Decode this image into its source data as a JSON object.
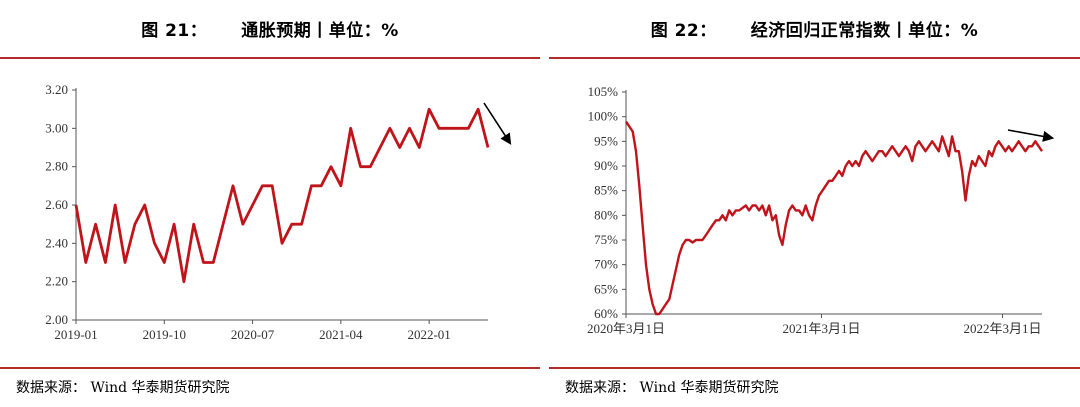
{
  "figures": [
    {
      "id": "fig21",
      "number": "图 21：",
      "title": "通胀预期丨单位：%",
      "source": "数据来源：  Wind  华泰期货研究院"
    },
    {
      "id": "fig22",
      "number": "图 22：",
      "title": "经济回归正常指数丨单位：%",
      "source": "数据来源：  Wind  华泰期货研究院"
    }
  ],
  "chart_data": [
    {
      "type": "line",
      "title": "通胀预期丨单位：%",
      "xlabel": "",
      "ylabel": "",
      "x_tick_labels": [
        "2019-01",
        "2019-10",
        "2020-07",
        "2021-04",
        "2022-01"
      ],
      "y_tick_labels": [
        "2.00",
        "2.20",
        "2.40",
        "2.60",
        "2.80",
        "3.00",
        "3.20"
      ],
      "ylim": [
        2.0,
        3.2
      ],
      "x_start": "2019-01",
      "frequency": "monthly",
      "series": [
        {
          "color": "#c0141b",
          "values": [
            2.6,
            2.3,
            2.5,
            2.3,
            2.6,
            2.3,
            2.5,
            2.6,
            2.4,
            2.3,
            2.5,
            2.2,
            2.5,
            2.3,
            2.3,
            2.5,
            2.7,
            2.5,
            2.6,
            2.7,
            2.7,
            2.4,
            2.5,
            2.5,
            2.7,
            2.7,
            2.8,
            2.7,
            3.0,
            2.8,
            2.8,
            2.9,
            3.0,
            2.9,
            3.0,
            2.9,
            3.1,
            3.0,
            3.0,
            3.0,
            3.0,
            3.1,
            2.9
          ]
        }
      ],
      "annotation": "downward-arrow",
      "grid": false
    },
    {
      "type": "line",
      "title": "经济回归正常指数丨单位：%",
      "xlabel": "",
      "ylabel": "",
      "x_tick_labels": [
        "2020年3月1日",
        "2021年3月1日",
        "2022年3月1日"
      ],
      "y_tick_labels": [
        "60%",
        "65%",
        "70%",
        "75%",
        "80%",
        "85%",
        "90%",
        "95%",
        "100%",
        "105%"
      ],
      "ylim": [
        60,
        105
      ],
      "x_start": "2020-03-01",
      "frequency": "weekly",
      "series": [
        {
          "color": "#c0141b",
          "values": [
            99,
            98,
            97,
            93,
            86,
            78,
            70,
            65,
            62,
            60,
            60,
            61,
            62,
            63,
            66,
            69,
            72,
            74,
            75,
            75,
            74.5,
            75,
            75,
            75,
            76,
            77,
            78,
            79,
            79,
            80,
            79,
            81,
            80,
            81,
            81,
            81.5,
            82,
            81,
            82,
            82,
            81,
            82,
            80,
            82,
            79,
            80,
            76,
            74,
            78,
            81,
            82,
            81,
            81,
            80,
            82,
            80,
            79,
            82,
            84,
            85,
            86,
            87,
            87,
            88,
            89,
            88,
            90,
            91,
            90,
            91,
            90,
            92,
            93,
            92,
            91,
            92,
            93,
            93,
            92,
            93,
            94,
            93,
            92,
            93,
            94,
            93,
            91,
            94,
            95,
            94,
            93,
            94,
            95,
            94,
            93,
            96,
            94,
            92,
            96,
            93,
            93,
            89,
            83,
            88,
            91,
            90,
            92,
            91,
            90,
            93,
            92,
            94,
            95,
            94,
            93,
            94,
            93,
            94,
            95,
            94,
            93,
            94,
            94,
            95,
            94,
            93
          ]
        }
      ],
      "annotation": "upward-arrow",
      "grid": false
    }
  ]
}
